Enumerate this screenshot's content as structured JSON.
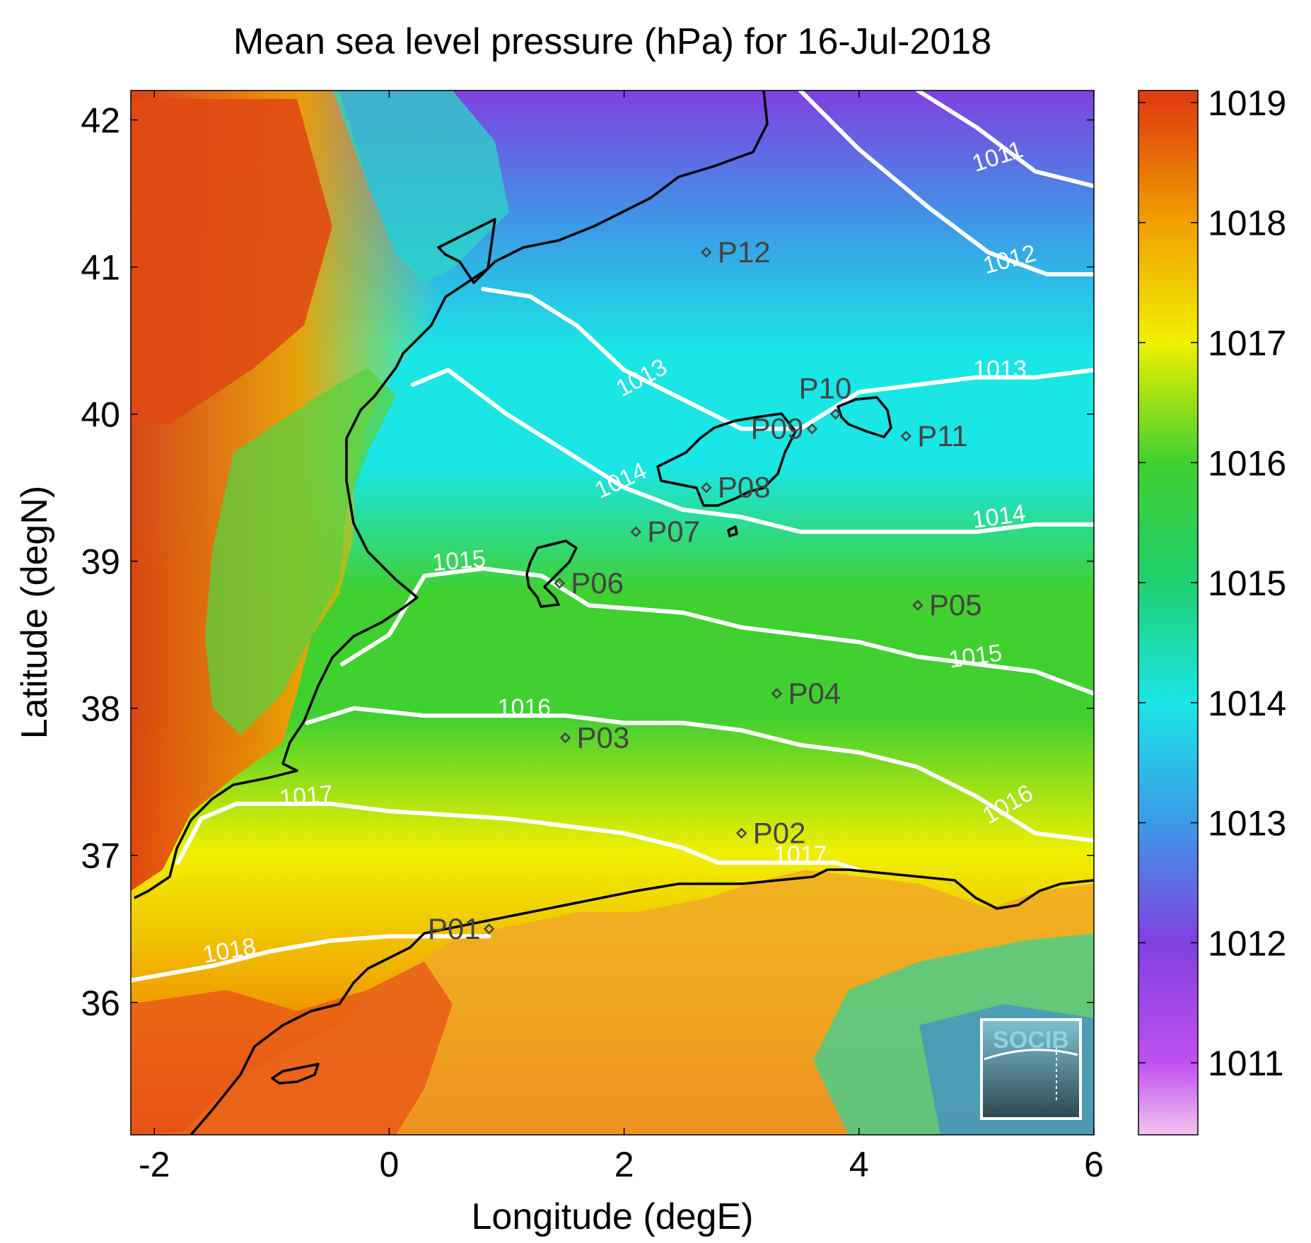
{
  "title": "Mean sea level pressure (hPa) for 16-Jul-2018",
  "xlabel": "Longitude (degE)",
  "ylabel": "Latitude (degN)",
  "logo_text": "SOCIB",
  "chart_data": {
    "type": "heatmap",
    "title": "Mean sea level pressure (hPa) for 16-Jul-2018",
    "xlabel": "Longitude (degE)",
    "ylabel": "Latitude (degN)",
    "xlim": [
      -2.2,
      6.0
    ],
    "ylim": [
      35.1,
      42.2
    ],
    "x_ticks": [
      -2,
      0,
      2,
      4,
      6
    ],
    "y_ticks": [
      36,
      37,
      38,
      39,
      40,
      41,
      42
    ],
    "colorbar": {
      "ticks": [
        1011,
        1012,
        1013,
        1014,
        1015,
        1016,
        1017,
        1018,
        1019
      ],
      "range": [
        1010.4,
        1019.1
      ],
      "stops": [
        {
          "v": 1010.4,
          "color": "#f2c4f0"
        },
        {
          "v": 1011.0,
          "color": "#c050f0"
        },
        {
          "v": 1012.0,
          "color": "#8040e0"
        },
        {
          "v": 1013.0,
          "color": "#3c9ae6"
        },
        {
          "v": 1014.0,
          "color": "#1ae6e6"
        },
        {
          "v": 1015.0,
          "color": "#20d070"
        },
        {
          "v": 1016.0,
          "color": "#40d030"
        },
        {
          "v": 1017.0,
          "color": "#f0f000"
        },
        {
          "v": 1018.0,
          "color": "#f0a000"
        },
        {
          "v": 1019.0,
          "color": "#e04010"
        }
      ]
    },
    "contours": [
      {
        "level": "1011",
        "points": [
          [
            4.5,
            42.2
          ],
          [
            5.0,
            41.95
          ],
          [
            5.5,
            41.65
          ],
          [
            6.0,
            41.55
          ]
        ],
        "label": [
          5.2,
          41.7,
          -18
        ]
      },
      {
        "level": "1012",
        "points": [
          [
            3.5,
            42.2
          ],
          [
            4.0,
            41.8
          ],
          [
            4.6,
            41.4
          ],
          [
            5.1,
            41.1
          ],
          [
            5.6,
            40.95
          ],
          [
            6.0,
            40.95
          ]
        ],
        "label": [
          5.3,
          41.0,
          -15
        ]
      },
      {
        "level": "1013",
        "points": [
          [
            0.8,
            40.85
          ],
          [
            1.2,
            40.8
          ],
          [
            1.6,
            40.6
          ],
          [
            2.0,
            40.3
          ],
          [
            2.5,
            40.1
          ],
          [
            3.0,
            39.9
          ],
          [
            3.5,
            39.9
          ],
          [
            4.0,
            40.15
          ],
          [
            4.5,
            40.2
          ],
          [
            5.0,
            40.25
          ],
          [
            5.5,
            40.25
          ],
          [
            6.0,
            40.3
          ]
        ],
        "label": [
          2.18,
          40.2,
          -28
        ]
      },
      {
        "level": "1013",
        "points": [],
        "label": [
          5.2,
          40.25,
          0
        ]
      },
      {
        "level": "1014",
        "points": [
          [
            0.2,
            40.2
          ],
          [
            0.5,
            40.3
          ],
          [
            1.0,
            40.0
          ],
          [
            1.5,
            39.75
          ],
          [
            2.0,
            39.5
          ],
          [
            2.5,
            39.35
          ],
          [
            3.0,
            39.3
          ],
          [
            3.5,
            39.2
          ],
          [
            4.0,
            39.2
          ],
          [
            4.5,
            39.2
          ],
          [
            5.0,
            39.2
          ],
          [
            5.5,
            39.25
          ],
          [
            6.0,
            39.25
          ]
        ],
        "label": [
          2.0,
          39.5,
          -25
        ]
      },
      {
        "level": "1014",
        "points": [],
        "label": [
          5.2,
          39.25,
          -8
        ]
      },
      {
        "level": "1015",
        "points": [
          [
            -0.4,
            38.3
          ],
          [
            0.0,
            38.5
          ],
          [
            0.3,
            38.9
          ],
          [
            0.8,
            38.95
          ],
          [
            1.3,
            38.9
          ],
          [
            1.7,
            38.7
          ],
          [
            2.5,
            38.65
          ],
          [
            3.0,
            38.55
          ],
          [
            3.5,
            38.5
          ],
          [
            4.0,
            38.45
          ],
          [
            4.5,
            38.35
          ],
          [
            5.0,
            38.3
          ],
          [
            5.5,
            38.25
          ],
          [
            6.0,
            38.1
          ]
        ],
        "label": [
          0.6,
          38.95,
          -5
        ]
      },
      {
        "level": "1015",
        "points": [],
        "label": [
          5.0,
          38.3,
          -8
        ]
      },
      {
        "level": "1016",
        "points": [
          [
            -0.7,
            37.9
          ],
          [
            -0.3,
            38.0
          ],
          [
            0.3,
            37.95
          ],
          [
            1.0,
            37.95
          ],
          [
            1.5,
            37.95
          ],
          [
            2.0,
            37.9
          ],
          [
            2.5,
            37.9
          ],
          [
            3.0,
            37.85
          ],
          [
            3.5,
            37.75
          ],
          [
            4.0,
            37.7
          ],
          [
            4.5,
            37.6
          ],
          [
            5.0,
            37.4
          ],
          [
            5.5,
            37.15
          ],
          [
            6.0,
            37.1
          ]
        ],
        "label": [
          1.15,
          37.95,
          0
        ]
      },
      {
        "level": "1016",
        "points": [],
        "label": [
          5.3,
          37.3,
          -30
        ]
      },
      {
        "level": "1017",
        "points": [
          [
            -1.8,
            36.95
          ],
          [
            -1.6,
            37.25
          ],
          [
            -1.3,
            37.35
          ],
          [
            -0.5,
            37.35
          ],
          [
            0.0,
            37.3
          ],
          [
            1.0,
            37.25
          ],
          [
            1.5,
            37.2
          ],
          [
            2.0,
            37.15
          ],
          [
            2.5,
            37.05
          ],
          [
            2.8,
            36.95
          ],
          [
            3.2,
            36.95
          ],
          [
            3.8,
            36.95
          ],
          [
            4.0,
            36.9
          ]
        ],
        "label": [
          -0.7,
          37.35,
          -5
        ]
      },
      {
        "level": "1017",
        "points": [],
        "label": [
          3.5,
          36.95,
          0
        ]
      },
      {
        "level": "1018",
        "points": [
          [
            -2.2,
            36.15
          ],
          [
            -1.5,
            36.25
          ],
          [
            -1.0,
            36.35
          ],
          [
            -0.5,
            36.42
          ],
          [
            0.0,
            36.45
          ],
          [
            0.5,
            36.45
          ],
          [
            0.85,
            36.45
          ]
        ],
        "label": [
          -1.35,
          36.3,
          -10
        ]
      }
    ],
    "stations": [
      {
        "id": "P01",
        "lon": 0.85,
        "lat": 36.5
      },
      {
        "id": "P02",
        "lon": 3.0,
        "lat": 37.15
      },
      {
        "id": "P03",
        "lon": 1.5,
        "lat": 37.8
      },
      {
        "id": "P04",
        "lon": 3.3,
        "lat": 38.1
      },
      {
        "id": "P05",
        "lon": 4.5,
        "lat": 38.7
      },
      {
        "id": "P06",
        "lon": 1.45,
        "lat": 38.85
      },
      {
        "id": "P07",
        "lon": 2.1,
        "lat": 39.2
      },
      {
        "id": "P08",
        "lon": 2.7,
        "lat": 39.5
      },
      {
        "id": "P09",
        "lon": 3.6,
        "lat": 39.9
      },
      {
        "id": "P10",
        "lon": 3.8,
        "lat": 40.0
      },
      {
        "id": "P11",
        "lon": 4.4,
        "lat": 39.85
      },
      {
        "id": "P12",
        "lon": 2.7,
        "lat": 41.1
      }
    ]
  }
}
